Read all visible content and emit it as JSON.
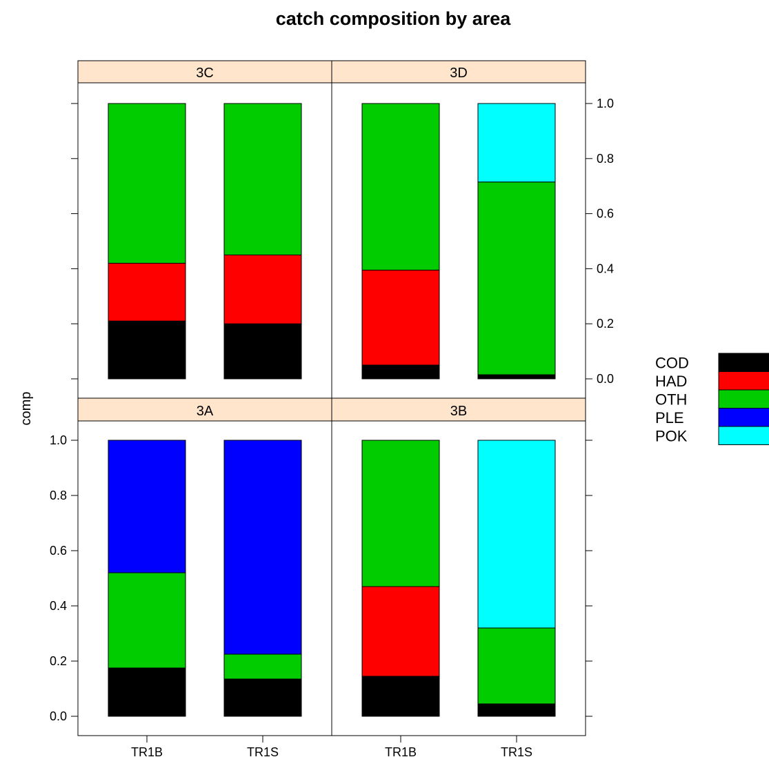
{
  "chart_data": {
    "type": "bar",
    "stacked": true,
    "title": "catch composition by area",
    "ylabel": "comp",
    "xlabel": "",
    "ylim": [
      0,
      1
    ],
    "yticks": [
      "0.0",
      "0.2",
      "0.4",
      "0.6",
      "0.8",
      "1.0"
    ],
    "categories": [
      "TR1B",
      "TR1S"
    ],
    "species": [
      "COD",
      "HAD",
      "OTH",
      "PLE",
      "POK"
    ],
    "colors": {
      "COD": "#000000",
      "HAD": "#ff0000",
      "OTH": "#00cc00",
      "PLE": "#0000ff",
      "POK": "#00ffff"
    },
    "strip_color": "#ffe5cc",
    "legend_position": "right",
    "panels": [
      {
        "area": "3C",
        "series": {
          "COD": [
            0.21,
            0.2
          ],
          "HAD": [
            0.21,
            0.25
          ],
          "OTH": [
            0.58,
            0.55
          ],
          "PLE": [
            0.0,
            0.0
          ],
          "POK": [
            0.0,
            0.0
          ]
        }
      },
      {
        "area": "3D",
        "series": {
          "COD": [
            0.05,
            0.015
          ],
          "HAD": [
            0.345,
            0.0
          ],
          "OTH": [
            0.605,
            0.7
          ],
          "PLE": [
            0.0,
            0.0
          ],
          "POK": [
            0.0,
            0.285
          ]
        }
      },
      {
        "area": "3A",
        "series": {
          "COD": [
            0.175,
            0.135
          ],
          "HAD": [
            0.0,
            0.0
          ],
          "OTH": [
            0.345,
            0.09
          ],
          "PLE": [
            0.48,
            0.775
          ],
          "POK": [
            0.0,
            0.0
          ]
        }
      },
      {
        "area": "3B",
        "series": {
          "COD": [
            0.145,
            0.045
          ],
          "HAD": [
            0.325,
            0.0
          ],
          "OTH": [
            0.53,
            0.275
          ],
          "PLE": [
            0.0,
            0.0
          ],
          "POK": [
            0.0,
            0.68
          ]
        }
      }
    ]
  }
}
